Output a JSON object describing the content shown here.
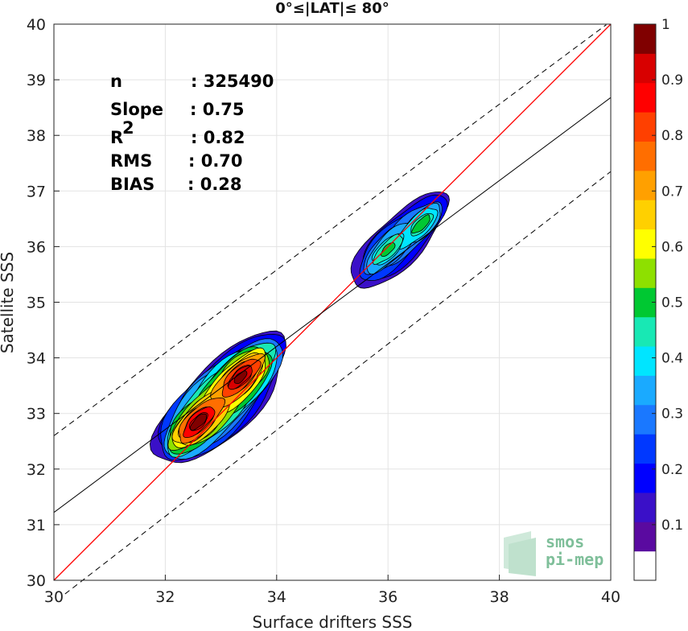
{
  "chart_data": {
    "type": "contour",
    "title": "0°≤|LAT|≤ 80°",
    "xlabel": "Surface drifters SSS",
    "ylabel": "Satellite SSS",
    "xlim": [
      30,
      40
    ],
    "ylim": [
      30,
      40
    ],
    "xticks": [
      "30",
      "32",
      "34",
      "36",
      "38",
      "40"
    ],
    "yticks": [
      "30",
      "31",
      "32",
      "33",
      "34",
      "35",
      "36",
      "37",
      "38",
      "39",
      "40"
    ],
    "grid": true,
    "stats": [
      {
        "label": "n",
        "value": ": 325490"
      },
      {
        "label": "Slope",
        "value": ": 0.75"
      },
      {
        "label": "R",
        "sup": "2",
        "value": ": 0.82"
      },
      {
        "label": "RMS",
        "value": ": 0.70"
      },
      {
        "label": "BIAS",
        "value": ": 0.28"
      }
    ],
    "lines": {
      "identity": {
        "slope": 1,
        "intercept": 0,
        "color": "#ff0000"
      },
      "fit": {
        "x": [
          30,
          40
        ],
        "y": [
          31.22,
          38.68
        ],
        "color": "#000000"
      },
      "upper_bound": {
        "x": [
          30,
          40
        ],
        "y": [
          32.6,
          40.05
        ],
        "color": "#000000",
        "dash": true
      },
      "lower_bound": {
        "x": [
          30,
          40
        ],
        "y": [
          29.6,
          37.35
        ],
        "color": "#000000",
        "dash": true
      }
    },
    "density_clusters": [
      {
        "name": "low",
        "center": [
          33.0,
          33.25
        ],
        "peaks": [
          [
            32.6,
            32.85
          ],
          [
            33.35,
            33.65
          ]
        ],
        "max_level": 1.0
      },
      {
        "name": "high",
        "center": [
          36.2,
          36.1
        ],
        "peaks": [
          [
            36.0,
            35.95
          ],
          [
            36.6,
            36.4
          ]
        ],
        "max_level": 0.45
      }
    ],
    "colorbar": {
      "range": [
        0,
        1
      ],
      "ticks": [
        "0.1",
        "0.2",
        "0.3",
        "0.4",
        "0.5",
        "0.6",
        "0.7",
        "0.8",
        "0.9",
        "1"
      ],
      "colors": [
        "#ffffff",
        "#5a0aa0",
        "#3a10c8",
        "#0000ff",
        "#0038ff",
        "#1a78ff",
        "#1aaaff",
        "#00e5ff",
        "#18e8b4",
        "#00c832",
        "#8ee000",
        "#ffff00",
        "#ffd000",
        "#ffa000",
        "#ff6e00",
        "#ff4000",
        "#ff0000",
        "#d80000",
        "#800000"
      ]
    }
  },
  "logo": {
    "line1": "smos",
    "line2": "pi-mep"
  }
}
